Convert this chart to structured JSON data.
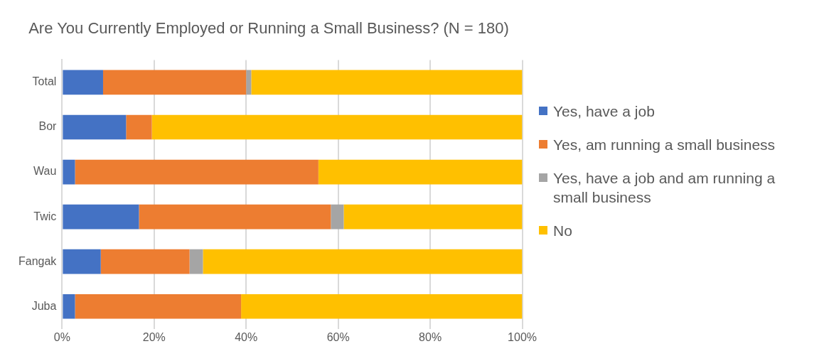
{
  "chart_data": {
    "type": "bar",
    "orientation": "horizontal",
    "stacked": true,
    "title": "Are You Currently Employed or Running a Small Business? (N = 180)",
    "categories": [
      "Total",
      "Bor",
      "Wau",
      "Twic",
      "Fangak",
      "Juba"
    ],
    "series": [
      {
        "name": "Yes, have a job",
        "color": "#4472c4",
        "values": [
          8.9,
          13.9,
          2.8,
          16.7,
          8.4,
          2.8
        ]
      },
      {
        "name": "Yes, am running a small business",
        "color": "#ed7d31",
        "values": [
          31.1,
          5.6,
          52.9,
          41.7,
          19.3,
          36.1
        ]
      },
      {
        "name": "Yes, have a job and am running a small business",
        "color": "#a5a5a5",
        "values": [
          1.1,
          0,
          0,
          2.8,
          2.9,
          0
        ]
      },
      {
        "name": "No",
        "color": "#ffc000",
        "values": [
          58.9,
          80.5,
          44.3,
          38.8,
          69.4,
          61.1
        ]
      }
    ],
    "xlim": [
      0,
      100
    ],
    "xticks": [
      {
        "value": 0,
        "label": "0%"
      },
      {
        "value": 20,
        "label": "20%"
      },
      {
        "value": 40,
        "label": "40%"
      },
      {
        "value": 60,
        "label": "60%"
      },
      {
        "value": 80,
        "label": "80%"
      },
      {
        "value": 100,
        "label": "100%"
      }
    ],
    "grid": "x",
    "legend": "right"
  }
}
